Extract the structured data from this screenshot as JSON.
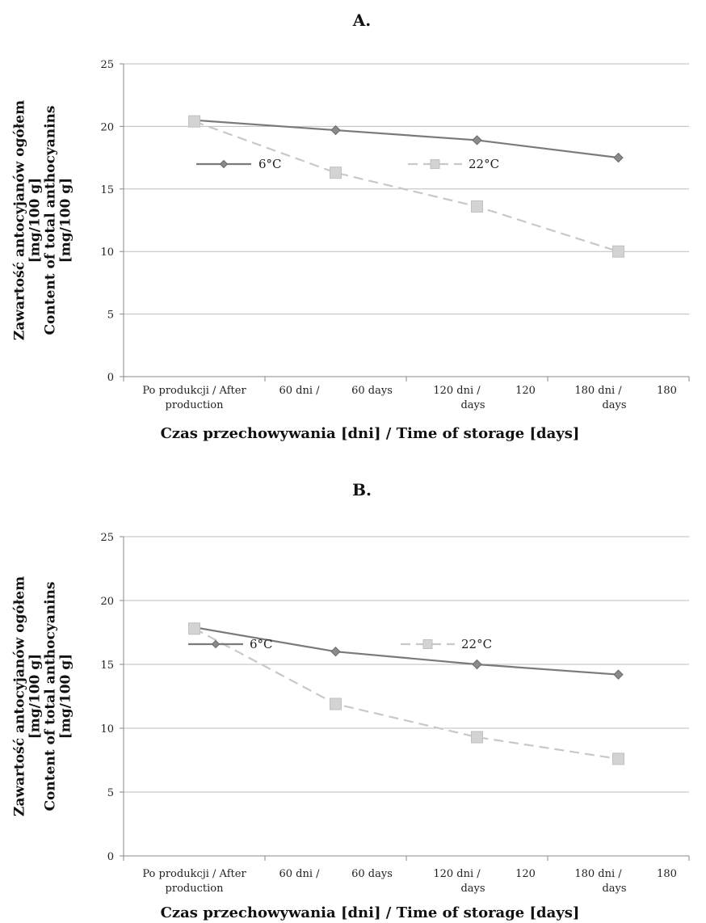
{
  "chart_data": [
    {
      "type": "line",
      "title": "A.",
      "ylabel_lines": [
        "Zawartość antocyjanów ogółem",
        "[mg/100 g]",
        "Content of total anthocyanins",
        "[mg/100 g]"
      ],
      "xlabel": "Czas przechowywania [dni] / Time of storage [days]",
      "ylim": [
        0,
        25
      ],
      "yticks": [
        "0",
        "5",
        "10",
        "15",
        "20",
        "25"
      ],
      "categories": [
        [
          "Po produkcji / After",
          "production"
        ],
        [
          "60 dni /",
          "60 days"
        ],
        [
          "120 dni /",
          "days",
          "120"
        ],
        [
          "180 dni /",
          "days",
          "180"
        ]
      ],
      "series": [
        {
          "name": "6°C",
          "values": [
            20.5,
            19.7,
            18.9,
            17.5
          ],
          "color": "#7a7a7a",
          "marker": "diamond",
          "dash": "solid"
        },
        {
          "name": "22°C",
          "values": [
            20.4,
            16.3,
            13.6,
            10.0
          ],
          "color": "#c8c8c8",
          "marker": "square",
          "dash": "dashed"
        }
      ],
      "grid": true,
      "legend": "inside-upper"
    },
    {
      "type": "line",
      "title": "B.",
      "ylabel_lines": [
        "Zawartość antocyjanów ogółem",
        "[mg/100 g]",
        "Content of total anthocyanins",
        "[mg/100 g]"
      ],
      "xlabel": "Czas przechowywania [dni] / Time of storage [days]",
      "ylim": [
        0,
        25
      ],
      "yticks": [
        "0",
        "5",
        "10",
        "15",
        "20",
        "25"
      ],
      "categories": [
        [
          "Po produkcji / After",
          "production"
        ],
        [
          "60 dni /",
          "60 days"
        ],
        [
          "120 dni /",
          "days",
          "120"
        ],
        [
          "180 dni /",
          "days",
          "180"
        ]
      ],
      "series": [
        {
          "name": "6°C",
          "values": [
            17.9,
            16.0,
            15.0,
            14.2
          ],
          "color": "#7a7a7a",
          "marker": "diamond",
          "dash": "solid"
        },
        {
          "name": "22°C",
          "values": [
            17.8,
            11.9,
            9.3,
            7.6
          ],
          "color": "#c8c8c8",
          "marker": "square",
          "dash": "dashed"
        }
      ],
      "grid": true,
      "legend": "inside-upper"
    }
  ]
}
